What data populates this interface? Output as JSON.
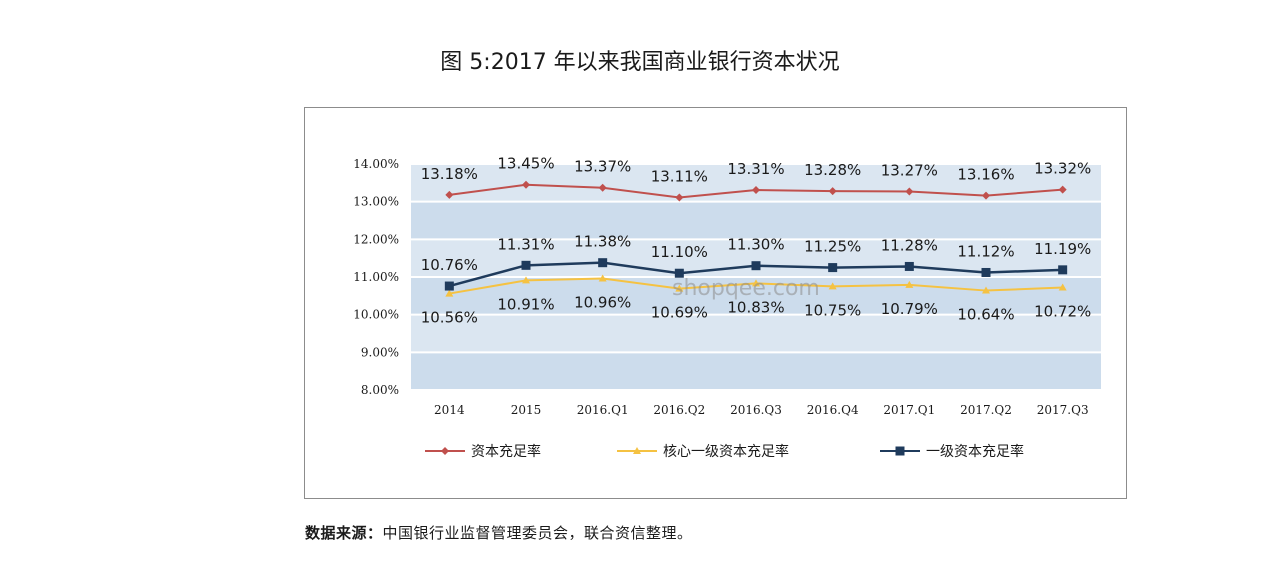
{
  "page": {
    "title": "图 5:2017 年以来我国商业银行资本状况",
    "source_label": "数据来源：",
    "source_text": "中国银行业监督管理委员会，联合资信整理。",
    "watermark": "shopqee.com"
  },
  "chart_data": {
    "type": "line",
    "categories": [
      "2014",
      "2015",
      "2016.Q1",
      "2016.Q2",
      "2016.Q3",
      "2016.Q4",
      "2017.Q1",
      "2017.Q2",
      "2017.Q3"
    ],
    "ylim": [
      8,
      14
    ],
    "yticks": [
      "8.00%",
      "9.00%",
      "10.00%",
      "11.00%",
      "12.00%",
      "13.00%",
      "14.00%"
    ],
    "legend_position": "bottom",
    "grid": "horizontal",
    "series": [
      {
        "name": "资本充足率",
        "color": "#c0504d",
        "marker": "diamond",
        "label_pos": "above",
        "values": [
          13.18,
          13.45,
          13.37,
          13.11,
          13.31,
          13.28,
          13.27,
          13.16,
          13.32
        ],
        "labels": [
          "13.18%",
          "13.45%",
          "13.37%",
          "13.11%",
          "13.31%",
          "13.28%",
          "13.27%",
          "13.16%",
          "13.32%"
        ]
      },
      {
        "name": "核心一级资本充足率",
        "color": "#f5c242",
        "marker": "triangle",
        "label_pos": "below",
        "values": [
          10.56,
          10.91,
          10.96,
          10.69,
          10.83,
          10.75,
          10.79,
          10.64,
          10.72
        ],
        "labels": [
          "10.56%",
          "10.91%",
          "10.96%",
          "10.69%",
          "10.83%",
          "10.75%",
          "10.79%",
          "10.64%",
          "10.72%"
        ]
      },
      {
        "name": "一级资本充足率",
        "color": "#1f3b5c",
        "marker": "square",
        "label_pos": "above",
        "values": [
          10.76,
          11.31,
          11.38,
          11.1,
          11.3,
          11.25,
          11.28,
          11.12,
          11.19
        ],
        "labels": [
          "10.76%",
          "11.31%",
          "11.38%",
          "11.10%",
          "11.30%",
          "11.25%",
          "11.28%",
          "11.12%",
          "11.19%"
        ]
      }
    ]
  }
}
